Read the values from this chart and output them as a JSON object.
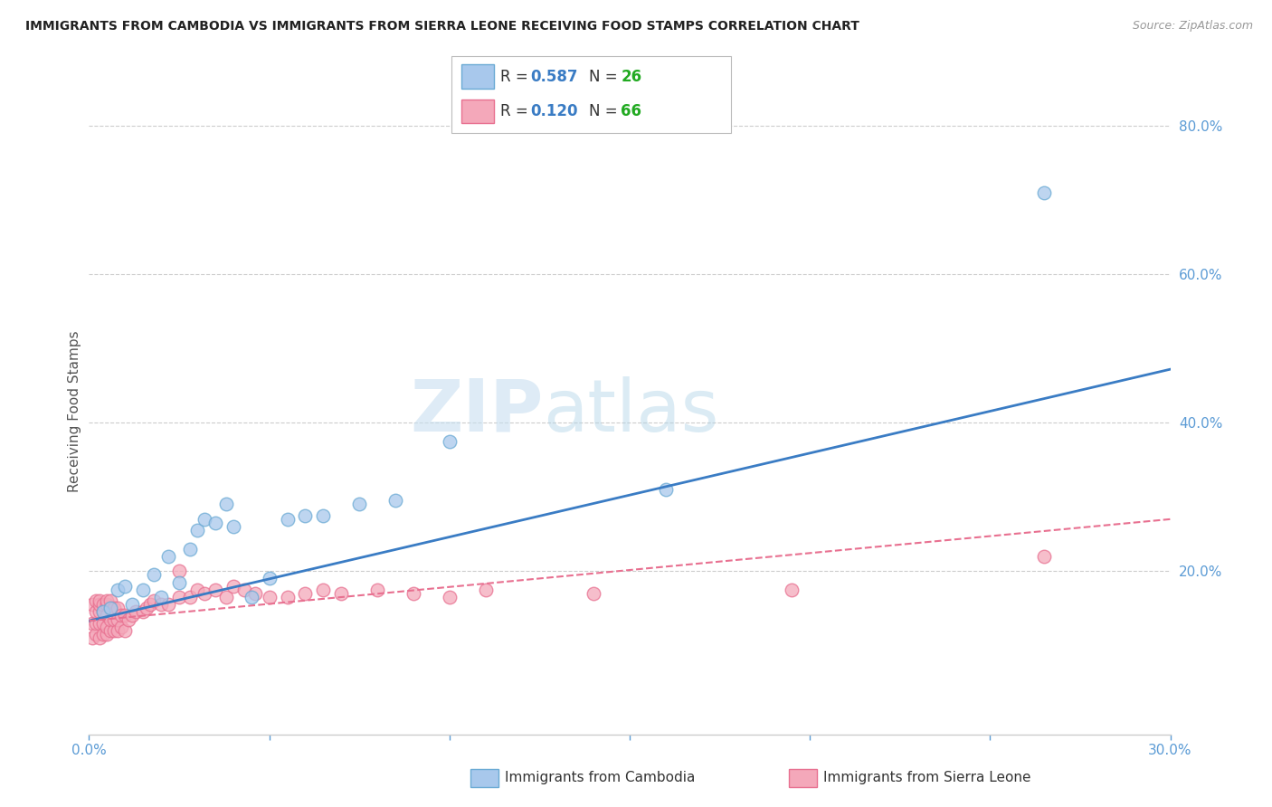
{
  "title": "IMMIGRANTS FROM CAMBODIA VS IMMIGRANTS FROM SIERRA LEONE RECEIVING FOOD STAMPS CORRELATION CHART",
  "source": "Source: ZipAtlas.com",
  "ylabel": "Receiving Food Stamps",
  "xlim": [
    0.0,
    0.3
  ],
  "ylim": [
    -0.02,
    0.85
  ],
  "right_yticks": [
    0.2,
    0.4,
    0.6,
    0.8
  ],
  "right_yticklabels": [
    "20.0%",
    "40.0%",
    "60.0%",
    "80.0%"
  ],
  "xticks": [
    0.0,
    0.05,
    0.1,
    0.15,
    0.2,
    0.25,
    0.3
  ],
  "xticklabels": [
    "0.0%",
    "",
    "",
    "",
    "",
    "",
    "30.0%"
  ],
  "watermark_zip": "ZIP",
  "watermark_atlas": "atlas",
  "color_cambodia": "#A8C8EC",
  "color_sierra_leone": "#F4A8BA",
  "color_cambodia_edge": "#6AAAD4",
  "color_sierra_leone_edge": "#E87090",
  "color_cambodia_line": "#3A7CC4",
  "color_sierra_leone_line": "#E87090",
  "color_axis": "#5B9BD5",
  "color_grid": "#CCCCCC",
  "cambodia_x": [
    0.004,
    0.006,
    0.008,
    0.01,
    0.012,
    0.015,
    0.018,
    0.02,
    0.022,
    0.025,
    0.028,
    0.03,
    0.032,
    0.035,
    0.038,
    0.04,
    0.045,
    0.05,
    0.055,
    0.06,
    0.065,
    0.075,
    0.085,
    0.1,
    0.16,
    0.265
  ],
  "cambodia_y": [
    0.145,
    0.15,
    0.175,
    0.18,
    0.155,
    0.175,
    0.195,
    0.165,
    0.22,
    0.185,
    0.23,
    0.255,
    0.27,
    0.265,
    0.29,
    0.26,
    0.165,
    0.19,
    0.27,
    0.275,
    0.275,
    0.29,
    0.295,
    0.375,
    0.31,
    0.71
  ],
  "sierra_x": [
    0.001,
    0.001,
    0.001,
    0.002,
    0.002,
    0.002,
    0.002,
    0.003,
    0.003,
    0.003,
    0.003,
    0.003,
    0.004,
    0.004,
    0.004,
    0.004,
    0.005,
    0.005,
    0.005,
    0.005,
    0.005,
    0.006,
    0.006,
    0.006,
    0.006,
    0.007,
    0.007,
    0.007,
    0.008,
    0.008,
    0.008,
    0.009,
    0.009,
    0.01,
    0.01,
    0.011,
    0.012,
    0.013,
    0.015,
    0.016,
    0.017,
    0.018,
    0.02,
    0.022,
    0.025,
    0.025,
    0.028,
    0.03,
    0.032,
    0.035,
    0.038,
    0.04,
    0.043,
    0.046,
    0.05,
    0.055,
    0.06,
    0.065,
    0.07,
    0.08,
    0.09,
    0.1,
    0.11,
    0.14,
    0.195,
    0.265
  ],
  "sierra_y": [
    0.11,
    0.13,
    0.155,
    0.115,
    0.13,
    0.145,
    0.16,
    0.11,
    0.13,
    0.145,
    0.155,
    0.16,
    0.115,
    0.13,
    0.145,
    0.155,
    0.115,
    0.125,
    0.14,
    0.155,
    0.16,
    0.12,
    0.135,
    0.15,
    0.16,
    0.12,
    0.135,
    0.15,
    0.12,
    0.135,
    0.15,
    0.125,
    0.14,
    0.12,
    0.14,
    0.135,
    0.14,
    0.145,
    0.145,
    0.15,
    0.155,
    0.16,
    0.155,
    0.155,
    0.165,
    0.2,
    0.165,
    0.175,
    0.17,
    0.175,
    0.165,
    0.18,
    0.175,
    0.17,
    0.165,
    0.165,
    0.17,
    0.175,
    0.17,
    0.175,
    0.17,
    0.165,
    0.175,
    0.17,
    0.175,
    0.22
  ],
  "line_cambodia_x0": 0.0,
  "line_cambodia_x1": 0.3,
  "line_cambodia_y0": 0.133,
  "line_cambodia_y1": 0.472,
  "line_sierra_x0": 0.0,
  "line_sierra_x1": 0.3,
  "line_sierra_y0": 0.133,
  "line_sierra_y1": 0.27
}
